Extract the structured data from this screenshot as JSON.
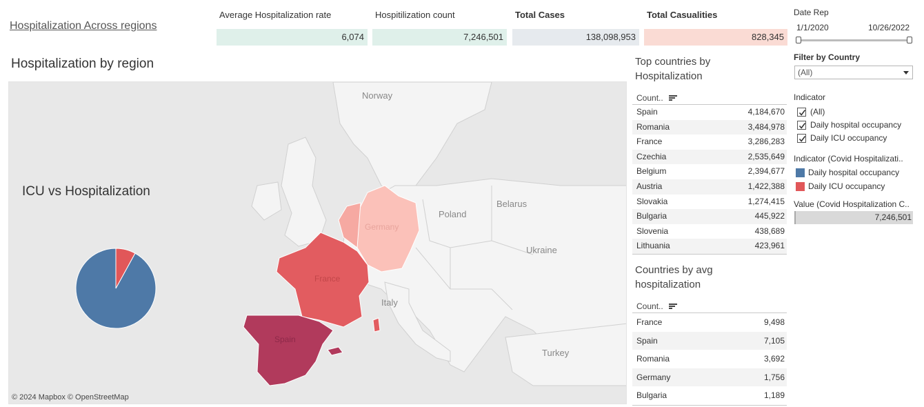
{
  "header": {
    "title": "Hospitalization Across regions"
  },
  "kpis": [
    {
      "label": "Average Hospitalization rate",
      "value": "6,074",
      "color": "#dff0ea"
    },
    {
      "label": "Hospitilization count",
      "value": "7,246,501",
      "color": "#dff0ea"
    },
    {
      "label": "Total Cases",
      "value": "138,098,953",
      "color": "#e6eaee"
    },
    {
      "label": "Total Casualities",
      "value": "828,345",
      "color": "#fadbd4"
    }
  ],
  "map": {
    "title": "Hospitalization by region",
    "attribution": "© 2024 Mapbox © OpenStreetMap",
    "labels": {
      "norway": "Norway",
      "poland": "Poland",
      "belarus": "Belarus",
      "ukraine": "Ukraine",
      "italy": "Italy",
      "turkey": "Turkey",
      "germany": "Germany",
      "france": "France",
      "spain": "Spain"
    },
    "colors": {
      "spain": "#b13a5c",
      "france": "#e25c60",
      "germany": "#fbc1b9",
      "netherlands": "#f6a9a2",
      "land": "#f4f4f4",
      "sea": "#e8e8e8"
    }
  },
  "pie": {
    "title": "ICU vs Hospitalization",
    "slices": [
      {
        "name": "Daily hospital occupancy",
        "fraction": 0.92,
        "color": "#4e79a7"
      },
      {
        "name": "Daily ICU occupancy",
        "fraction": 0.08,
        "color": "#e15759"
      }
    ]
  },
  "top_table": {
    "title_line1": "Top countries by",
    "title_line2": "Hospitalization",
    "header": "Count..",
    "rows": [
      {
        "country": "Spain",
        "value": "4,184,670"
      },
      {
        "country": "Romania",
        "value": "3,484,978"
      },
      {
        "country": "France",
        "value": "3,286,283"
      },
      {
        "country": "Czechia",
        "value": "2,535,649"
      },
      {
        "country": "Belgium",
        "value": "2,394,677"
      },
      {
        "country": "Austria",
        "value": "1,422,388"
      },
      {
        "country": "Slovakia",
        "value": "1,274,415"
      },
      {
        "country": "Bulgaria",
        "value": "445,922"
      },
      {
        "country": "Slovenia",
        "value": "438,689"
      },
      {
        "country": "Lithuania",
        "value": "423,961"
      }
    ]
  },
  "avg_table": {
    "title_line1": "Countries by avg",
    "title_line2": "hospitalization",
    "header": "Count..",
    "rows": [
      {
        "country": "France",
        "value": "9,498"
      },
      {
        "country": "Spain",
        "value": "7,105"
      },
      {
        "country": "Romania",
        "value": "3,692"
      },
      {
        "country": "Germany",
        "value": "1,756"
      },
      {
        "country": "Bulgaria",
        "value": "1,189"
      }
    ]
  },
  "filters": {
    "date_label": "Date Rep",
    "date_start": "1/1/2020",
    "date_end": "10/26/2022",
    "country_label": "Filter by Country",
    "country_value": "(All)",
    "indicator_label": "Indicator",
    "indicator_options": [
      {
        "label": "(All)",
        "checked": true
      },
      {
        "label": "Daily hospital occupancy",
        "checked": true
      },
      {
        "label": "Daily ICU occupancy",
        "checked": true
      }
    ],
    "legend_label": "Indicator (Covid Hospitalizati..",
    "legend_items": [
      {
        "label": "Daily hospital occupancy",
        "color": "#4e79a7"
      },
      {
        "label": "Daily ICU occupancy",
        "color": "#e15759"
      }
    ],
    "value_label": "Value (Covid Hospitalization C..",
    "value_text": "7,246,501"
  }
}
